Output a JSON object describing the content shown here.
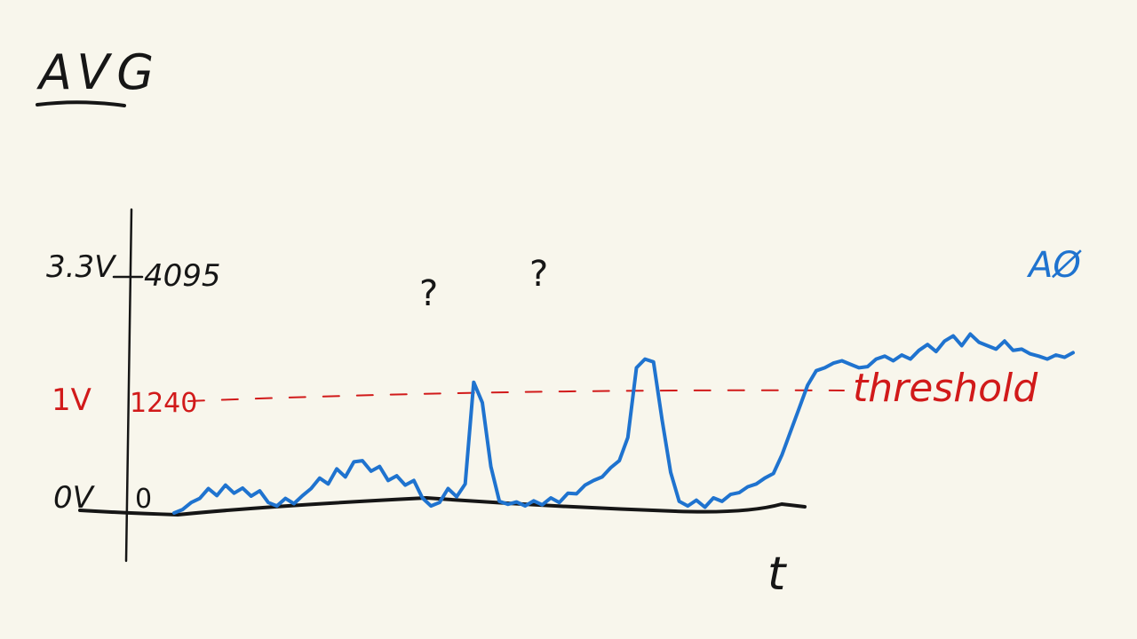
{
  "title": "AVG",
  "y_axis": {
    "top_voltage": "3.3V",
    "top_value": "4095",
    "threshold_voltage": "1V",
    "threshold_value": "1240",
    "bottom_voltage": "0V",
    "bottom_value": "0"
  },
  "x_axis": {
    "label": "t"
  },
  "threshold_label": "threshold",
  "signal_label": "AØ",
  "question_marks": [
    "?",
    "?"
  ],
  "colors": {
    "background": "#f8f6ec",
    "ink": "#161616",
    "signal": "#1f73cf",
    "threshold": "#d11a1a"
  },
  "chart_data": {
    "type": "line",
    "ylim": [
      0,
      4095
    ],
    "threshold": 1240,
    "series": [
      {
        "name": "AØ",
        "values": [
          0,
          60,
          180,
          250,
          420,
          300,
          480,
          340,
          430,
          290,
          380,
          180,
          120,
          250,
          160,
          300,
          420,
          600,
          500,
          760,
          620,
          880,
          900,
          720,
          800,
          560,
          640,
          480,
          560,
          260,
          120,
          180,
          420,
          280,
          500,
          2250,
          1900,
          800,
          200,
          150,
          190,
          120,
          210,
          140,
          260,
          180,
          340,
          330,
          480,
          560,
          620,
          780,
          900,
          1300,
          2500,
          2650,
          2600,
          1600,
          700,
          200,
          120,
          220,
          100,
          260,
          200,
          320,
          350,
          450,
          500,
          600,
          680,
          1000,
          1400,
          1800,
          2200,
          2450,
          2500,
          2580,
          2620,
          2560,
          2500,
          2520,
          2650,
          2700,
          2620,
          2720,
          2650,
          2800,
          2900,
          2780,
          2960,
          3050,
          2880,
          3080,
          2940,
          2880,
          2820,
          2960,
          2800,
          2820,
          2740,
          2700,
          2650,
          2720,
          2680,
          2760
        ]
      }
    ]
  }
}
